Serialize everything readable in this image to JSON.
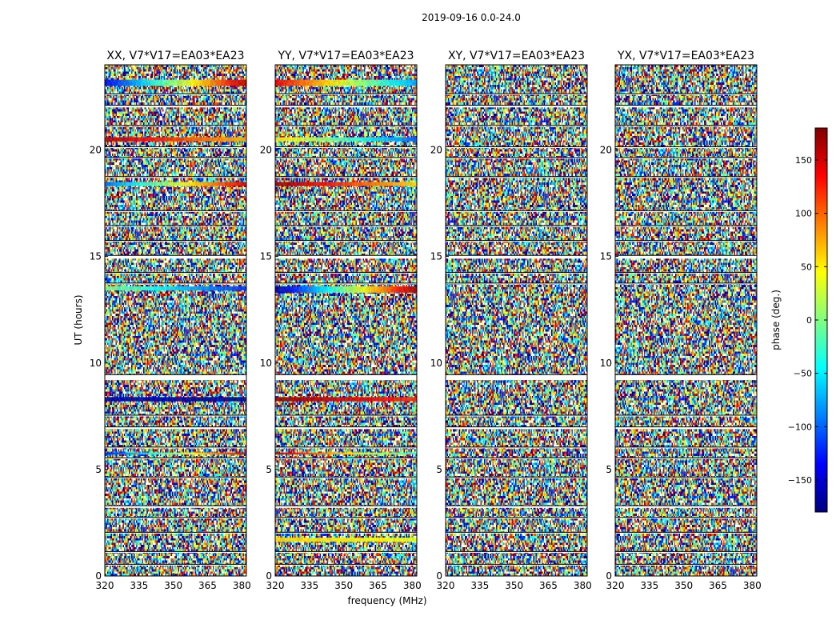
{
  "chart_data": {
    "type": "heatmap",
    "title": "2019-09-16 0.0-24.0",
    "xlabel": "frequency (MHz)",
    "ylabel": "UT (hours)",
    "xlim": [
      320,
      382
    ],
    "ylim": [
      0,
      24
    ],
    "xticks": [
      "320",
      "335",
      "350",
      "365",
      "380"
    ],
    "yticks": [
      "0",
      "5",
      "10",
      "15",
      "20"
    ],
    "panels": [
      {
        "name": "XX, V7*V17=EA03*EA23"
      },
      {
        "name": "YY, V7*V17=EA03*EA23"
      },
      {
        "name": "XY, V7*V17=EA03*EA23"
      },
      {
        "name": "YX, V7*V17=EA03*EA23"
      }
    ],
    "colorbar": {
      "label": "phase (deg.)",
      "range": [
        -180,
        180
      ],
      "ticks": [
        "150",
        "100",
        "50",
        "0",
        "−50",
        "−100",
        "−150"
      ],
      "colormap": "jet"
    },
    "blank_bands_hours": [
      [
        0.5,
        0.55
      ],
      [
        1.1,
        1.15
      ],
      [
        2.0,
        2.05
      ],
      [
        2.7,
        2.75
      ],
      [
        3.2,
        3.3
      ],
      [
        4.6,
        4.65
      ],
      [
        5.5,
        5.55
      ],
      [
        6.0,
        6.05
      ],
      [
        6.9,
        7.0
      ],
      [
        7.5,
        7.55
      ],
      [
        9.2,
        9.45
      ],
      [
        13.7,
        13.75
      ],
      [
        14.2,
        14.25
      ],
      [
        14.9,
        15.05
      ],
      [
        15.7,
        15.75
      ],
      [
        16.4,
        16.45
      ],
      [
        17.1,
        17.15
      ],
      [
        18.7,
        18.75
      ],
      [
        19.6,
        19.65
      ],
      [
        20.1,
        20.15
      ],
      [
        21.1,
        21.15
      ],
      [
        22.0,
        22.1
      ],
      [
        22.6,
        22.65
      ]
    ],
    "coherent_bands": [
      {
        "panel": 0,
        "t0": 23.0,
        "t1": 23.3,
        "phase_start": -140,
        "phase_end": 160
      },
      {
        "panel": 0,
        "t0": 20.4,
        "t1": 20.6,
        "phase_start": 160,
        "phase_end": 70
      },
      {
        "panel": 0,
        "t0": 18.3,
        "t1": 18.5,
        "phase_start": -100,
        "phase_end": 150
      },
      {
        "panel": 0,
        "t0": 13.4,
        "t1": 13.6,
        "phase_start": 0,
        "phase_end": -120
      },
      {
        "panel": 0,
        "t0": 8.2,
        "t1": 8.4,
        "phase_start": -160,
        "phase_end": -170
      },
      {
        "panel": 0,
        "t0": 5.7,
        "t1": 5.8,
        "phase_start": -130,
        "phase_end": 150
      },
      {
        "panel": 1,
        "t0": 23.0,
        "t1": 23.3,
        "phase_start": 140,
        "phase_end": -80
      },
      {
        "panel": 1,
        "t0": 20.4,
        "t1": 20.6,
        "phase_start": 60,
        "phase_end": -100
      },
      {
        "panel": 1,
        "t0": 18.3,
        "t1": 18.5,
        "phase_start": 170,
        "phase_end": 60
      },
      {
        "panel": 1,
        "t0": 13.3,
        "t1": 13.6,
        "phase_start": -170,
        "phase_end": 170
      },
      {
        "panel": 1,
        "t0": 8.2,
        "t1": 8.4,
        "phase_start": 170,
        "phase_end": 120
      },
      {
        "panel": 1,
        "t0": 5.7,
        "t1": 5.8,
        "phase_start": 160,
        "phase_end": -40
      },
      {
        "panel": 1,
        "t0": 1.6,
        "t1": 1.8,
        "phase_start": 60,
        "phase_end": 40
      }
    ]
  }
}
